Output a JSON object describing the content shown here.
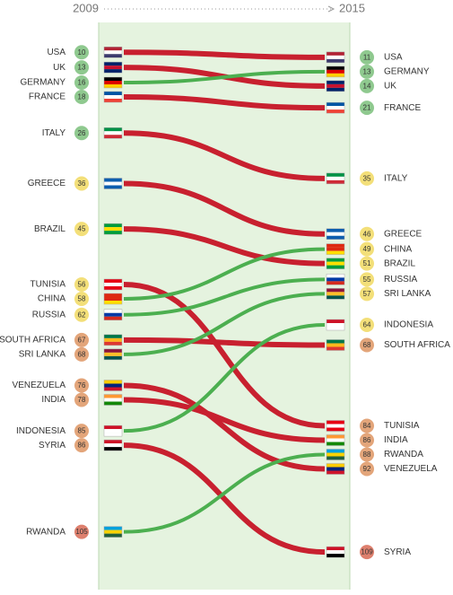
{
  "chart_data": {
    "type": "slope",
    "categories": [
      "USA",
      "UK",
      "GERMANY",
      "FRANCE",
      "ITALY",
      "GREECE",
      "BRAZIL",
      "TUNISIA",
      "CHINA",
      "RUSSIA",
      "SOUTH AFRICA",
      "SRI LANKA",
      "VENEZUELA",
      "INDIA",
      "INDONESIA",
      "SYRIA",
      "RWANDA"
    ],
    "series": [
      {
        "name": "2009",
        "values": [
          10,
          13,
          16,
          18,
          26,
          36,
          45,
          56,
          58,
          62,
          67,
          68,
          76,
          78,
          85,
          86,
          105
        ]
      },
      {
        "name": "2015",
        "values": [
          11,
          14,
          13,
          21,
          35,
          46,
          51,
          84,
          49,
          55,
          68,
          57,
          92,
          86,
          64,
          109,
          88
        ]
      }
    ],
    "ylim": [
      8,
      112
    ],
    "colors": {
      "up": "#4caf50",
      "down": "#c8202f"
    }
  }
}
